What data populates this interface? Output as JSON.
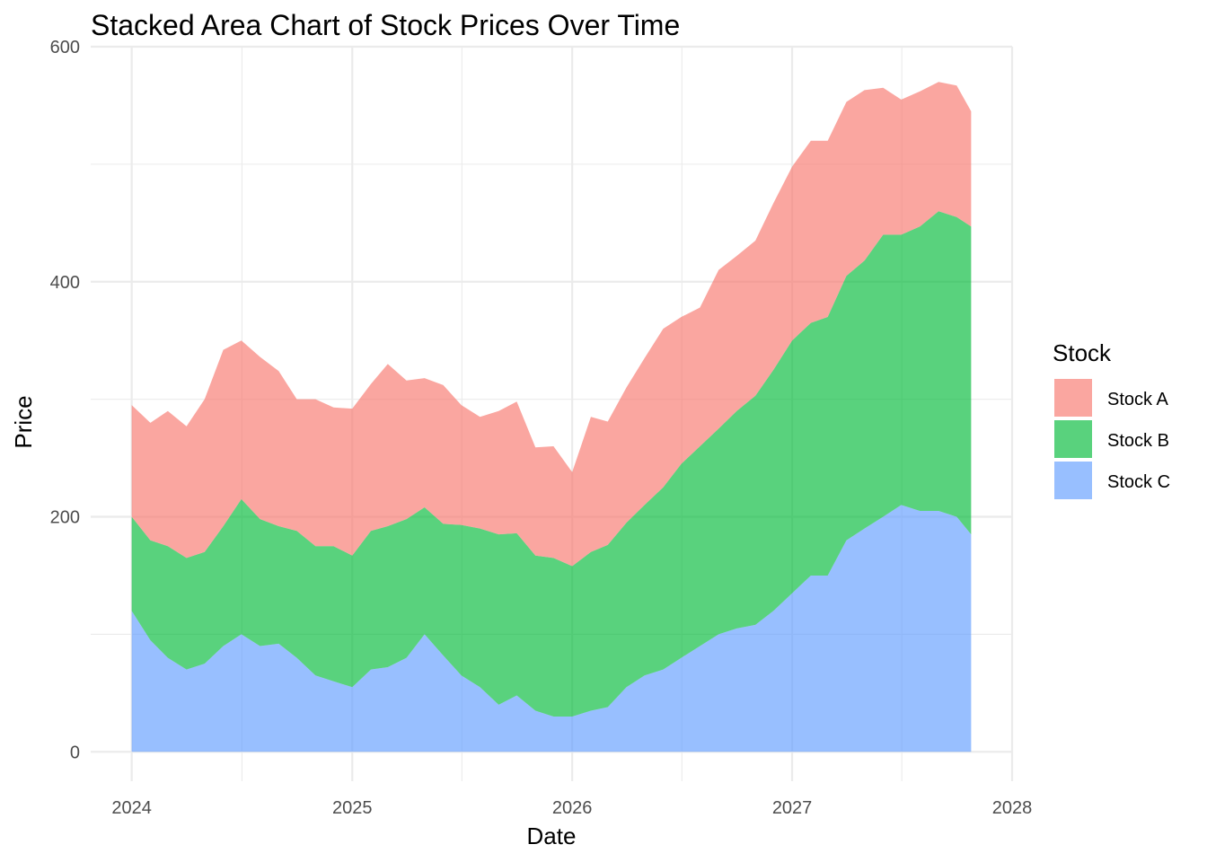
{
  "chart_data": {
    "type": "area",
    "stacked": true,
    "title": "Stacked Area Chart of Stock Prices Over Time",
    "xlabel": "Date",
    "ylabel": "Price",
    "x_ticks": [
      "2024",
      "2025",
      "2026",
      "2027",
      "2028"
    ],
    "x_range": [
      "2023-10-25",
      "2028-01-01"
    ],
    "y_ticks": [
      0,
      200,
      400,
      600
    ],
    "ylim": [
      -25,
      600
    ],
    "grid": true,
    "legend": {
      "title": "Stock",
      "position": "right"
    },
    "stack_order_bottom_to_top": [
      "Stock C",
      "Stock B",
      "Stock A"
    ],
    "series": [
      {
        "name": "Stock A",
        "color": "#F8766D",
        "points": [
          [
            "2024-01-01",
            95
          ],
          [
            "2024-02-01",
            100
          ],
          [
            "2024-03-01",
            115
          ],
          [
            "2024-04-01",
            112
          ],
          [
            "2024-05-01",
            130
          ],
          [
            "2024-06-01",
            150
          ],
          [
            "2024-07-01",
            135
          ],
          [
            "2024-08-01",
            138
          ],
          [
            "2024-09-01",
            132
          ],
          [
            "2024-10-01",
            112
          ],
          [
            "2024-11-01",
            125
          ],
          [
            "2024-12-01",
            118
          ],
          [
            "2025-01-01",
            125
          ],
          [
            "2025-02-01",
            125
          ],
          [
            "2025-03-01",
            138
          ],
          [
            "2025-04-01",
            118
          ],
          [
            "2025-05-01",
            110
          ],
          [
            "2025-06-01",
            118
          ],
          [
            "2025-07-01",
            102
          ],
          [
            "2025-08-01",
            95
          ],
          [
            "2025-09-01",
            105
          ],
          [
            "2025-10-01",
            112
          ],
          [
            "2025-11-01",
            92
          ],
          [
            "2025-12-01",
            95
          ],
          [
            "2026-01-01",
            80
          ],
          [
            "2026-02-01",
            115
          ],
          [
            "2026-03-01",
            105
          ],
          [
            "2026-04-01",
            115
          ],
          [
            "2026-05-01",
            125
          ],
          [
            "2026-06-01",
            135
          ],
          [
            "2026-07-01",
            125
          ],
          [
            "2026-08-01",
            118
          ],
          [
            "2026-09-01",
            135
          ],
          [
            "2026-10-01",
            132
          ],
          [
            "2026-11-01",
            132
          ],
          [
            "2026-12-01",
            142
          ],
          [
            "2027-01-01",
            148
          ],
          [
            "2027-02-01",
            155
          ],
          [
            "2027-03-01",
            150
          ],
          [
            "2027-04-01",
            148
          ],
          [
            "2027-05-01",
            145
          ],
          [
            "2027-06-01",
            125
          ],
          [
            "2027-07-01",
            115
          ],
          [
            "2027-08-01",
            115
          ],
          [
            "2027-09-01",
            110
          ],
          [
            "2027-10-01",
            112
          ],
          [
            "2027-10-25",
            98
          ]
        ]
      },
      {
        "name": "Stock B",
        "color": "#00BA38",
        "points": [
          [
            "2024-01-01",
            80
          ],
          [
            "2024-02-01",
            85
          ],
          [
            "2024-03-01",
            95
          ],
          [
            "2024-04-01",
            95
          ],
          [
            "2024-05-01",
            95
          ],
          [
            "2024-06-01",
            102
          ],
          [
            "2024-07-01",
            115
          ],
          [
            "2024-08-01",
            108
          ],
          [
            "2024-09-01",
            100
          ],
          [
            "2024-10-01",
            108
          ],
          [
            "2024-11-01",
            110
          ],
          [
            "2024-12-01",
            115
          ],
          [
            "2025-01-01",
            112
          ],
          [
            "2025-02-01",
            118
          ],
          [
            "2025-03-01",
            120
          ],
          [
            "2025-04-01",
            118
          ],
          [
            "2025-05-01",
            108
          ],
          [
            "2025-06-01",
            112
          ],
          [
            "2025-07-01",
            128
          ],
          [
            "2025-08-01",
            135
          ],
          [
            "2025-09-01",
            145
          ],
          [
            "2025-10-01",
            138
          ],
          [
            "2025-11-01",
            132
          ],
          [
            "2025-12-01",
            135
          ],
          [
            "2026-01-01",
            128
          ],
          [
            "2026-02-01",
            135
          ],
          [
            "2026-03-01",
            138
          ],
          [
            "2026-04-01",
            140
          ],
          [
            "2026-05-01",
            145
          ],
          [
            "2026-06-01",
            155
          ],
          [
            "2026-07-01",
            165
          ],
          [
            "2026-08-01",
            170
          ],
          [
            "2026-09-01",
            175
          ],
          [
            "2026-10-01",
            185
          ],
          [
            "2026-11-01",
            195
          ],
          [
            "2026-12-01",
            205
          ],
          [
            "2027-01-01",
            215
          ],
          [
            "2027-02-01",
            215
          ],
          [
            "2027-03-01",
            220
          ],
          [
            "2027-04-01",
            225
          ],
          [
            "2027-05-01",
            228
          ],
          [
            "2027-06-01",
            240
          ],
          [
            "2027-07-01",
            230
          ],
          [
            "2027-08-01",
            242
          ],
          [
            "2027-09-01",
            255
          ],
          [
            "2027-10-01",
            255
          ],
          [
            "2027-10-25",
            262
          ]
        ]
      },
      {
        "name": "Stock C",
        "color": "#619CFF",
        "points": [
          [
            "2024-01-01",
            120
          ],
          [
            "2024-02-01",
            95
          ],
          [
            "2024-03-01",
            80
          ],
          [
            "2024-04-01",
            70
          ],
          [
            "2024-05-01",
            75
          ],
          [
            "2024-06-01",
            90
          ],
          [
            "2024-07-01",
            100
          ],
          [
            "2024-08-01",
            90
          ],
          [
            "2024-09-01",
            92
          ],
          [
            "2024-10-01",
            80
          ],
          [
            "2024-11-01",
            65
          ],
          [
            "2024-12-01",
            60
          ],
          [
            "2025-01-01",
            55
          ],
          [
            "2025-02-01",
            70
          ],
          [
            "2025-03-01",
            72
          ],
          [
            "2025-04-01",
            80
          ],
          [
            "2025-05-01",
            100
          ],
          [
            "2025-06-01",
            82
          ],
          [
            "2025-07-01",
            65
          ],
          [
            "2025-08-01",
            55
          ],
          [
            "2025-09-01",
            40
          ],
          [
            "2025-10-01",
            48
          ],
          [
            "2025-11-01",
            35
          ],
          [
            "2025-12-01",
            30
          ],
          [
            "2026-01-01",
            30
          ],
          [
            "2026-02-01",
            35
          ],
          [
            "2026-03-01",
            38
          ],
          [
            "2026-04-01",
            55
          ],
          [
            "2026-05-01",
            65
          ],
          [
            "2026-06-01",
            70
          ],
          [
            "2026-07-01",
            80
          ],
          [
            "2026-08-01",
            90
          ],
          [
            "2026-09-01",
            100
          ],
          [
            "2026-10-01",
            105
          ],
          [
            "2026-11-01",
            108
          ],
          [
            "2026-12-01",
            120
          ],
          [
            "2027-01-01",
            135
          ],
          [
            "2027-02-01",
            150
          ],
          [
            "2027-03-01",
            150
          ],
          [
            "2027-04-01",
            180
          ],
          [
            "2027-05-01",
            190
          ],
          [
            "2027-06-01",
            200
          ],
          [
            "2027-07-01",
            210
          ],
          [
            "2027-08-01",
            205
          ],
          [
            "2027-09-01",
            205
          ],
          [
            "2027-10-01",
            200
          ],
          [
            "2027-10-25",
            185
          ]
        ]
      }
    ]
  }
}
